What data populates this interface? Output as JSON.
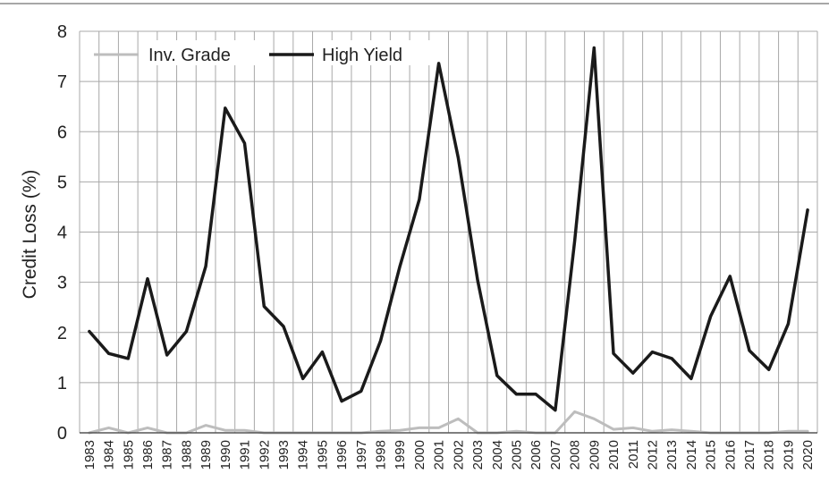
{
  "chart_data": {
    "type": "line",
    "ylabel": "Credit Loss (%)",
    "ylim": [
      0,
      8
    ],
    "yticks": [
      0,
      1,
      2,
      3,
      4,
      5,
      6,
      7,
      8
    ],
    "grid": true,
    "legend_position": "top-left",
    "x": [
      "1983",
      "1984",
      "1985",
      "1986",
      "1987",
      "1988",
      "1989",
      "1990",
      "1991",
      "1992",
      "1993",
      "1994",
      "1995",
      "1996",
      "1997",
      "1998",
      "1999",
      "2000",
      "2001",
      "2002",
      "2003",
      "2004",
      "2005",
      "2006",
      "2007",
      "2008",
      "2009",
      "2010",
      "2011",
      "2012",
      "2013",
      "2014",
      "2015",
      "2016",
      "2017",
      "2018",
      "2019",
      "2020"
    ],
    "series": [
      {
        "name": "Inv. Grade",
        "color": "#bdbdbd",
        "values": [
          0.0,
          0.1,
          0.0,
          0.1,
          0.0,
          0.0,
          0.15,
          0.05,
          0.05,
          0.0,
          0.0,
          0.0,
          0.0,
          0.0,
          0.0,
          0.03,
          0.05,
          0.1,
          0.1,
          0.28,
          0.0,
          0.0,
          0.03,
          0.0,
          0.0,
          0.42,
          0.28,
          0.07,
          0.1,
          0.03,
          0.06,
          0.03,
          0.0,
          0.0,
          0.0,
          0.0,
          0.03,
          0.03
        ]
      },
      {
        "name": "High Yield",
        "color": "#1a1a1a",
        "values": [
          2.02,
          1.58,
          1.48,
          3.07,
          1.55,
          2.02,
          3.32,
          6.47,
          5.77,
          2.52,
          2.12,
          1.08,
          1.61,
          0.63,
          0.83,
          1.83,
          3.32,
          4.65,
          7.36,
          5.48,
          3.04,
          1.14,
          0.77,
          0.77,
          0.45,
          3.82,
          7.67,
          1.58,
          1.19,
          1.61,
          1.48,
          1.08,
          2.32,
          3.12,
          1.64,
          1.26,
          2.17,
          4.44
        ]
      }
    ]
  }
}
